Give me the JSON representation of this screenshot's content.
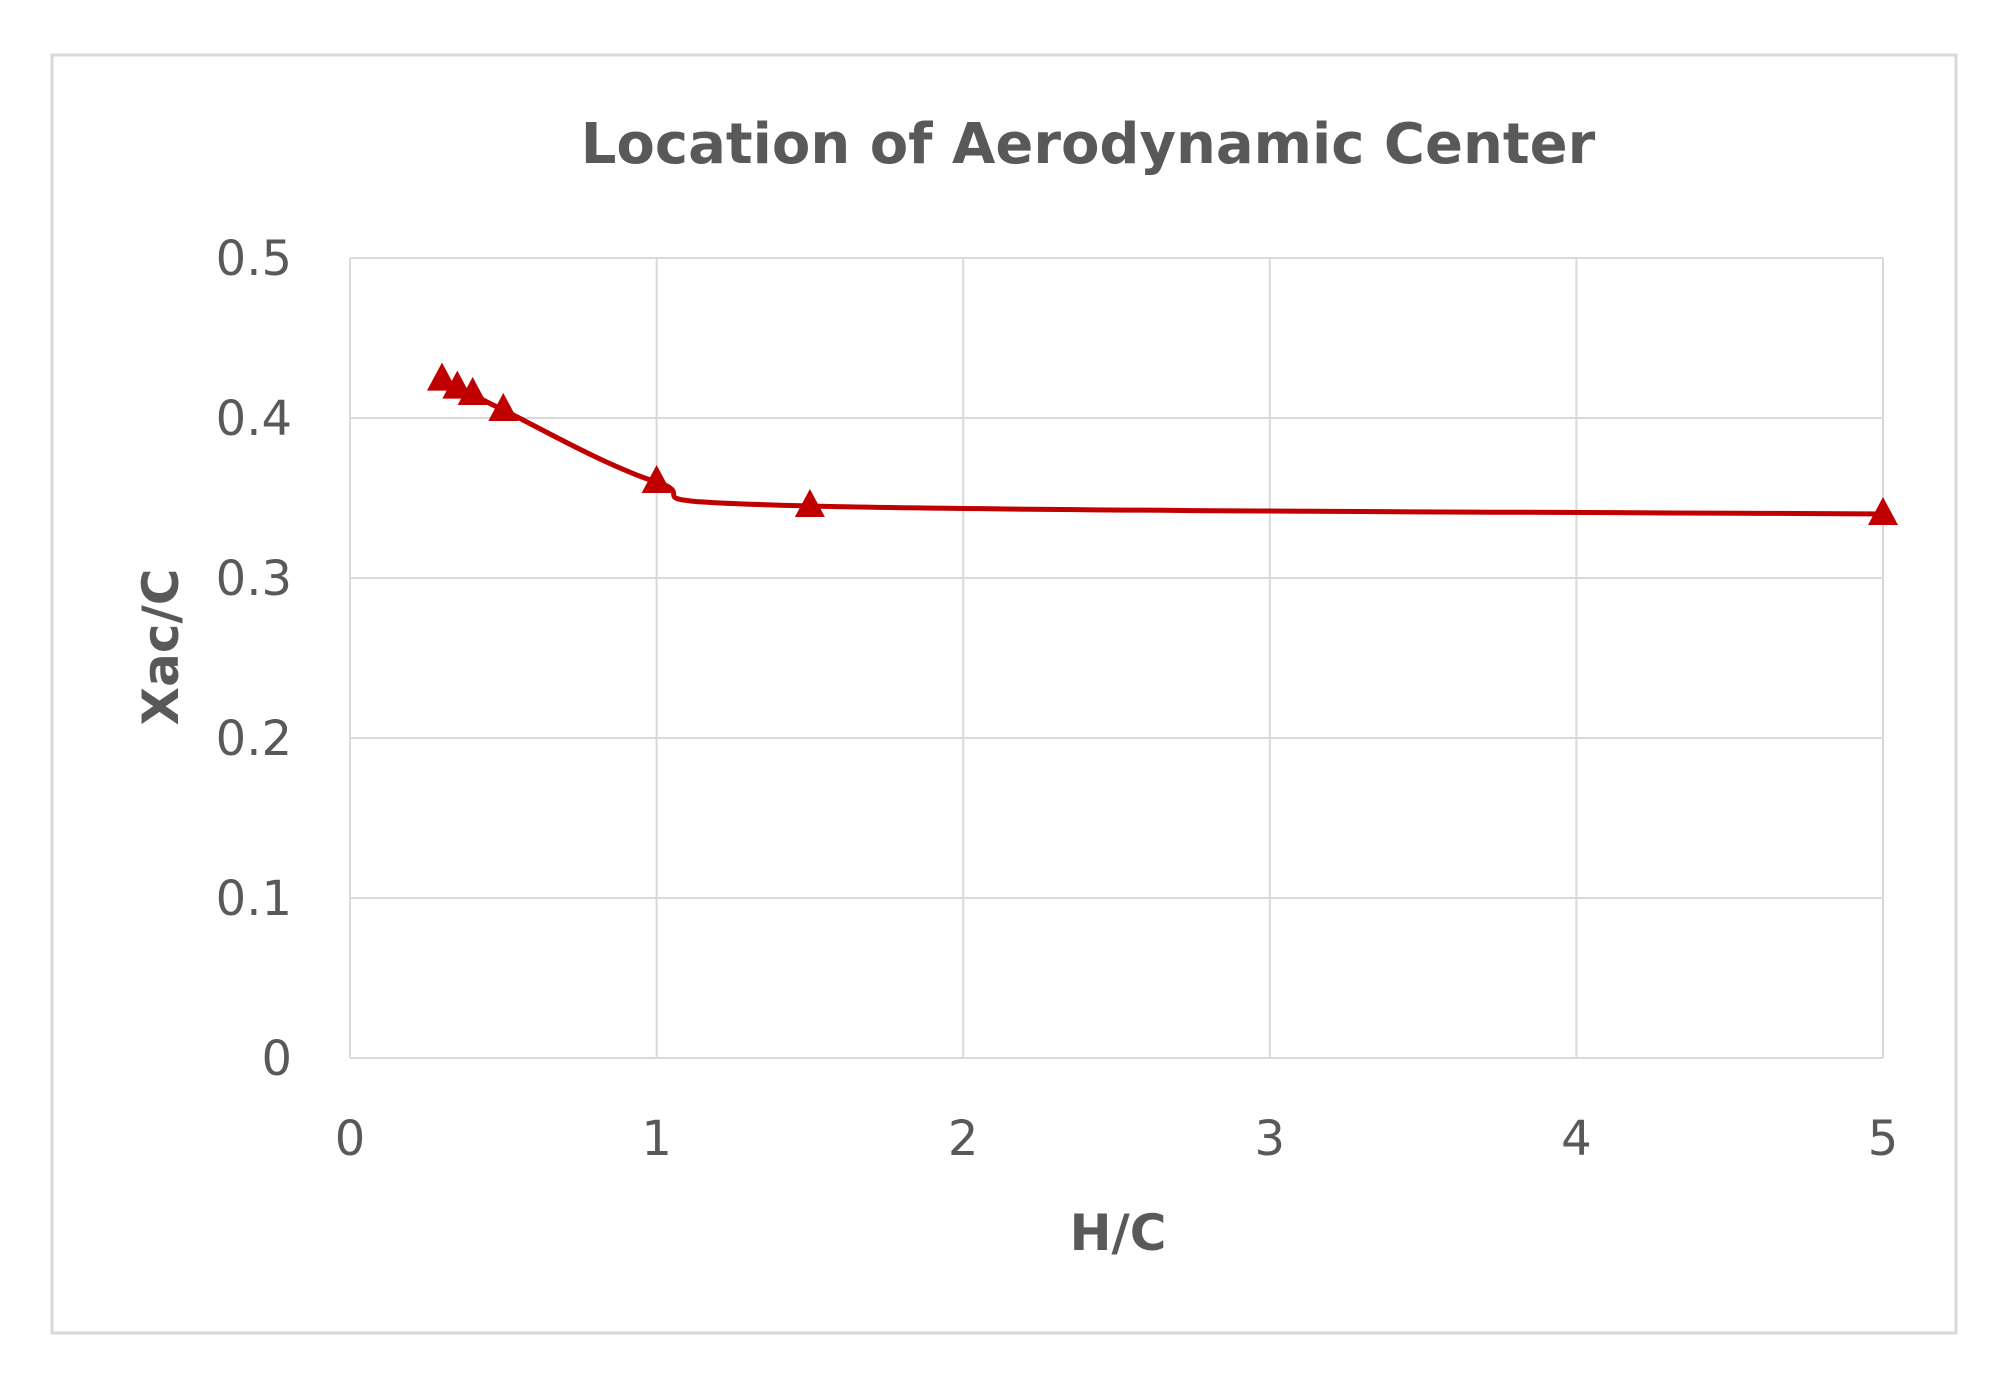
{
  "chart_data": {
    "type": "line",
    "title": "Location of Aerodynamic Center",
    "xlabel": "H/C",
    "ylabel": "Xac/C",
    "xlim": [
      0,
      5
    ],
    "ylim": [
      0,
      0.5
    ],
    "x_ticks": [
      0,
      1,
      2,
      3,
      4,
      5
    ],
    "y_ticks": [
      0,
      0.1,
      0.2,
      0.3,
      0.4,
      0.5
    ],
    "x_tick_labels": [
      "0",
      "1",
      "2",
      "3",
      "4",
      "5"
    ],
    "y_tick_labels": [
      "0",
      "0.1",
      "0.2",
      "0.3",
      "0.4",
      "0.5"
    ],
    "grid": true,
    "legend": "none",
    "smooth": true,
    "marker": "triangle",
    "series": [
      {
        "color": "#c00000",
        "x": [
          0.3,
          0.35,
          0.4,
          0.5,
          1.0,
          1.5,
          5.0
        ],
        "y": [
          0.424,
          0.419,
          0.415,
          0.405,
          0.36,
          0.345,
          0.34
        ]
      }
    ]
  },
  "style": {
    "frame_border_color": "#d9d9d9",
    "grid_color": "#d9d9d9",
    "text_color": "#595959"
  }
}
